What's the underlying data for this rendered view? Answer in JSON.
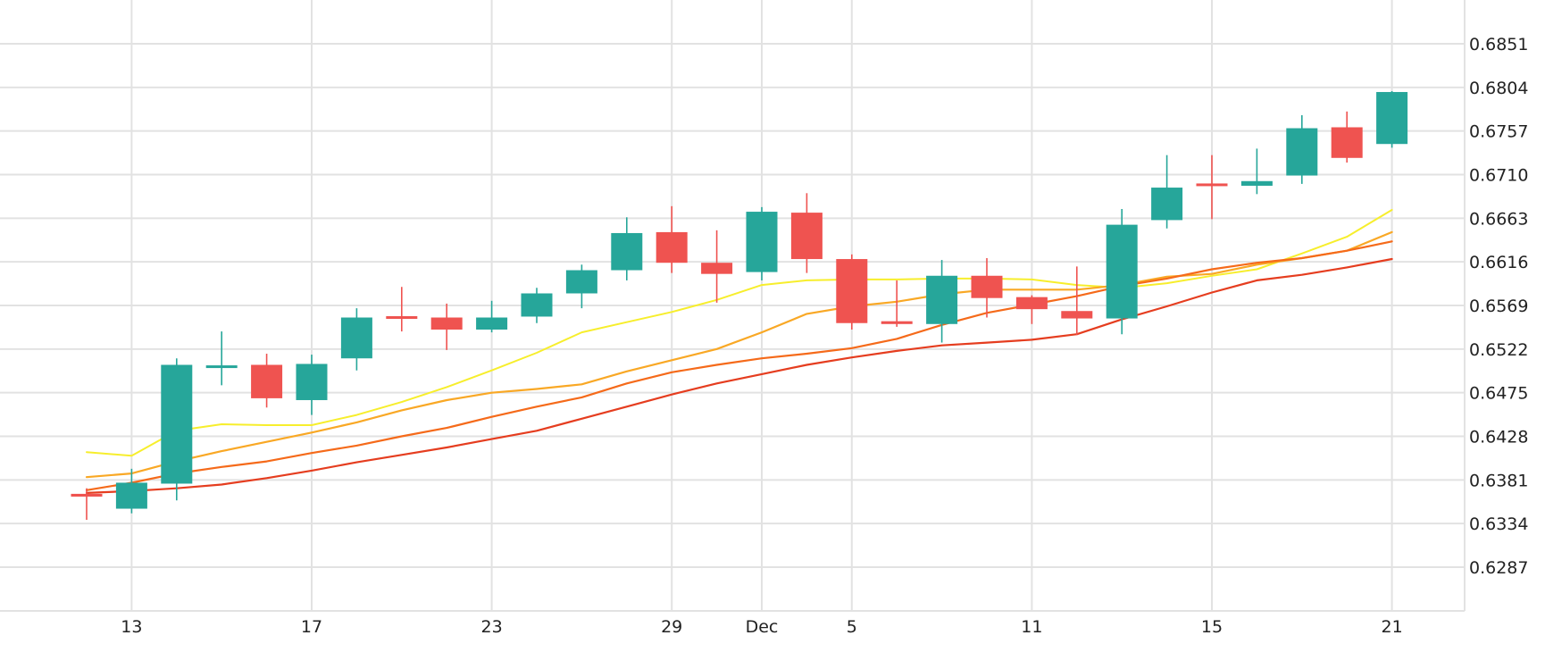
{
  "chart_data": {
    "type": "candlestick",
    "title": "",
    "xlabel": "",
    "ylabel": "",
    "grid": true,
    "legend": "none",
    "y_axis_side": "right",
    "ylim": [
      0.6245,
      0.6895
    ],
    "y_ticks": [
      "0.6287",
      "0.6334",
      "0.6381",
      "0.6428",
      "0.6475",
      "0.6522",
      "0.6569",
      "0.6616",
      "0.6663",
      "0.6710",
      "0.6757",
      "0.6804",
      "0.6851"
    ],
    "x_ticks": [
      {
        "index": 1,
        "label": "13"
      },
      {
        "index": 5,
        "label": "17"
      },
      {
        "index": 9,
        "label": "23"
      },
      {
        "index": 13,
        "label": "29"
      },
      {
        "index": 15,
        "label": "Dec"
      },
      {
        "index": 17,
        "label": "5"
      },
      {
        "index": 21,
        "label": "11"
      },
      {
        "index": 25,
        "label": "15"
      },
      {
        "index": 29,
        "label": "21"
      }
    ],
    "candles": [
      {
        "o": 0.6366,
        "h": 0.6372,
        "l": 0.6338,
        "c": 0.6363
      },
      {
        "o": 0.635,
        "h": 0.6393,
        "l": 0.6345,
        "c": 0.6378
      },
      {
        "o": 0.6377,
        "h": 0.6512,
        "l": 0.6359,
        "c": 0.6505
      },
      {
        "o": 0.6503,
        "h": 0.6541,
        "l": 0.6483,
        "c": 0.6503
      },
      {
        "o": 0.6505,
        "h": 0.6517,
        "l": 0.6459,
        "c": 0.6469
      },
      {
        "o": 0.6467,
        "h": 0.6516,
        "l": 0.6451,
        "c": 0.6506
      },
      {
        "o": 0.6512,
        "h": 0.6566,
        "l": 0.6499,
        "c": 0.6556
      },
      {
        "o": 0.6556,
        "h": 0.6589,
        "l": 0.6541,
        "c": 0.6555
      },
      {
        "o": 0.6556,
        "h": 0.6571,
        "l": 0.6521,
        "c": 0.6543
      },
      {
        "o": 0.6543,
        "h": 0.6574,
        "l": 0.654,
        "c": 0.6556
      },
      {
        "o": 0.6557,
        "h": 0.6588,
        "l": 0.655,
        "c": 0.6582
      },
      {
        "o": 0.6582,
        "h": 0.6613,
        "l": 0.6566,
        "c": 0.6607
      },
      {
        "o": 0.6607,
        "h": 0.6664,
        "l": 0.6596,
        "c": 0.6647
      },
      {
        "o": 0.6648,
        "h": 0.6676,
        "l": 0.6604,
        "c": 0.6615
      },
      {
        "o": 0.6615,
        "h": 0.665,
        "l": 0.6572,
        "c": 0.6603
      },
      {
        "o": 0.6605,
        "h": 0.6675,
        "l": 0.6596,
        "c": 0.667
      },
      {
        "o": 0.6669,
        "h": 0.669,
        "l": 0.6604,
        "c": 0.6619
      },
      {
        "o": 0.6619,
        "h": 0.6624,
        "l": 0.6543,
        "c": 0.655
      },
      {
        "o": 0.6552,
        "h": 0.6596,
        "l": 0.6546,
        "c": 0.6549
      },
      {
        "o": 0.6549,
        "h": 0.6618,
        "l": 0.6529,
        "c": 0.6601
      },
      {
        "o": 0.6601,
        "h": 0.662,
        "l": 0.6556,
        "c": 0.6577
      },
      {
        "o": 0.6578,
        "h": 0.658,
        "l": 0.6549,
        "c": 0.6565
      },
      {
        "o": 0.6563,
        "h": 0.6611,
        "l": 0.6537,
        "c": 0.6555
      },
      {
        "o": 0.6555,
        "h": 0.6673,
        "l": 0.6538,
        "c": 0.6656
      },
      {
        "o": 0.6661,
        "h": 0.6731,
        "l": 0.6652,
        "c": 0.6696
      },
      {
        "o": 0.6699,
        "h": 0.6731,
        "l": 0.6662,
        "c": 0.6697
      },
      {
        "o": 0.6698,
        "h": 0.6738,
        "l": 0.6689,
        "c": 0.6703
      },
      {
        "o": 0.6709,
        "h": 0.6774,
        "l": 0.67,
        "c": 0.676
      },
      {
        "o": 0.6761,
        "h": 0.6778,
        "l": 0.6723,
        "c": 0.6728
      },
      {
        "o": 0.6743,
        "h": 0.68,
        "l": 0.6739,
        "c": 0.6799
      }
    ],
    "series": [
      {
        "color": "#f7ee2c",
        "values": [
          0.6411,
          0.6407,
          0.6434,
          0.6441,
          0.644,
          0.644,
          0.6451,
          0.6465,
          0.6481,
          0.6499,
          0.6518,
          0.654,
          0.6551,
          0.6562,
          0.6575,
          0.6591,
          0.6596,
          0.6597,
          0.6597,
          0.6598,
          0.6598,
          0.6597,
          0.6591,
          0.6588,
          0.6593,
          0.6601,
          0.6608,
          0.6625,
          0.6643,
          0.6672
        ]
      },
      {
        "color": "#f9a825",
        "values": [
          0.6384,
          0.6388,
          0.6401,
          0.6412,
          0.6422,
          0.6432,
          0.6443,
          0.6456,
          0.6467,
          0.6475,
          0.6479,
          0.6484,
          0.6498,
          0.651,
          0.6522,
          0.654,
          0.656,
          0.6568,
          0.6573,
          0.6581,
          0.6586,
          0.6586,
          0.6586,
          0.6591,
          0.66,
          0.6603,
          0.6613,
          0.662,
          0.6628,
          0.6648
        ]
      },
      {
        "color": "#f56a1a",
        "values": [
          0.637,
          0.6378,
          0.6388,
          0.6395,
          0.6401,
          0.641,
          0.6418,
          0.6428,
          0.6437,
          0.6449,
          0.646,
          0.647,
          0.6485,
          0.6497,
          0.6505,
          0.6512,
          0.6517,
          0.6523,
          0.6533,
          0.6548,
          0.6561,
          0.657,
          0.6579,
          0.659,
          0.6598,
          0.6608,
          0.6615,
          0.662,
          0.6628,
          0.6638
        ]
      },
      {
        "color": "#e53d1f",
        "values": [
          0.6367,
          0.6369,
          0.6372,
          0.6376,
          0.6383,
          0.6391,
          0.64,
          0.6408,
          0.6416,
          0.6425,
          0.6434,
          0.6447,
          0.646,
          0.6473,
          0.6485,
          0.6495,
          0.6505,
          0.6513,
          0.652,
          0.6526,
          0.6529,
          0.6532,
          0.6538,
          0.6554,
          0.6568,
          0.6583,
          0.6596,
          0.6602,
          0.661,
          0.6619
        ]
      }
    ],
    "up_color": "#26a69a",
    "down_color": "#ef5350",
    "grid_color": "#e2e2e2"
  }
}
